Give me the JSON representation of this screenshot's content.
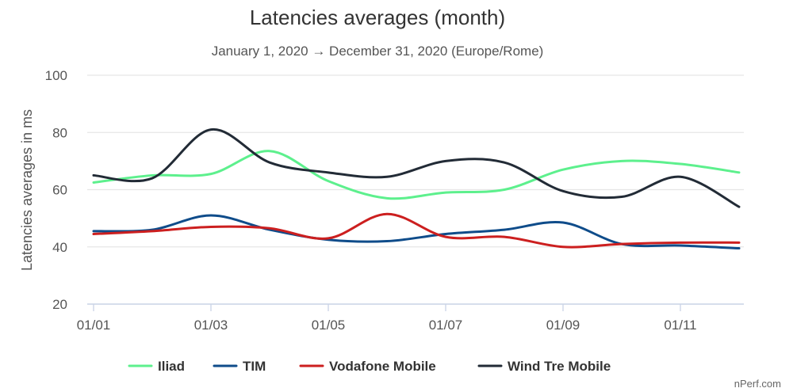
{
  "chart_data": {
    "type": "line",
    "title": "Latencies averages (month)",
    "subtitle": "January 1, 2020 → December 31, 2020 (Europe/Rome)",
    "xlabel": "",
    "ylabel": "Latencies averages in ms",
    "x": [
      "01/01",
      "01/02",
      "01/03",
      "01/04",
      "01/05",
      "01/06",
      "01/07",
      "01/08",
      "01/09",
      "01/10",
      "01/11",
      "01/12"
    ],
    "x_tick_labels": [
      "01/01",
      "01/03",
      "01/05",
      "01/07",
      "01/09",
      "01/11"
    ],
    "y_ticks": [
      20,
      40,
      60,
      80,
      100
    ],
    "ylim": [
      20,
      100
    ],
    "grid": true,
    "legend_position": "bottom",
    "series": [
      {
        "name": "Iliad",
        "color": "#5df08d",
        "values": [
          62.5,
          65,
          65.5,
          73.5,
          63,
          57,
          59,
          60,
          67,
          70,
          69,
          66
        ]
      },
      {
        "name": "TIM",
        "color": "#0f4c8a",
        "values": [
          45.5,
          46,
          51,
          46,
          42.5,
          42,
          44.5,
          46,
          48.5,
          41,
          40.5,
          39.5
        ]
      },
      {
        "name": "Vodafone Mobile",
        "color": "#cc1f1f",
        "values": [
          44.5,
          45.5,
          47,
          46.5,
          43,
          51.5,
          43.5,
          43.5,
          40,
          41,
          41.5,
          41.5
        ]
      },
      {
        "name": "Wind Tre Mobile",
        "color": "#222b36",
        "values": [
          65,
          64,
          81,
          69.5,
          66,
          64.5,
          70,
          69.5,
          59.5,
          57.5,
          64.5,
          54
        ]
      }
    ],
    "credit": "nPerf.com"
  }
}
